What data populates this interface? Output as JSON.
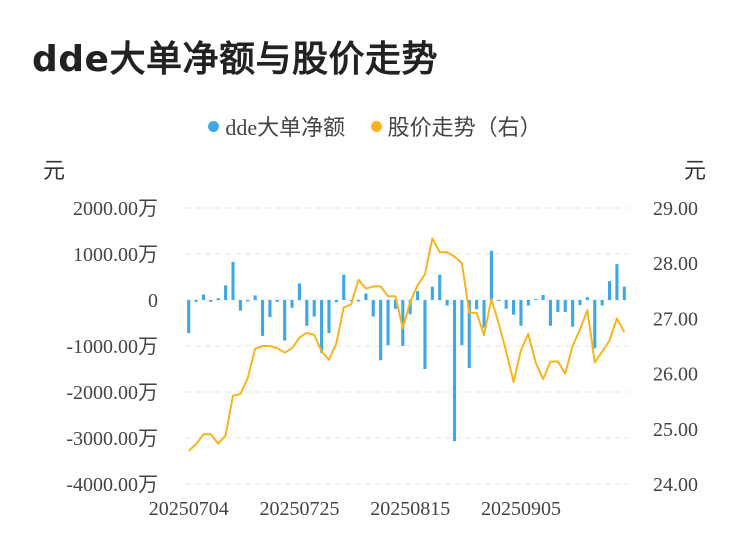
{
  "title": "dde大单净额与股价走势",
  "colors": {
    "bar": "#3fa7e6",
    "line": "#f6b51e",
    "grid": "#e6e6e6"
  },
  "chart_data": {
    "type": "bar+line",
    "title": "dde大单净额与股价走势",
    "legend": [
      "dde大单净额",
      "股价走势（右）"
    ],
    "legend_position": "top-center",
    "left_unit": "元",
    "right_unit": "元",
    "left_axis": {
      "range": [
        -4000,
        2000
      ],
      "ticks": [
        "2000.00万",
        "1000.00万",
        "0",
        "-1000.00万",
        "-2000.00万",
        "-3000.00万",
        "-4000.00万"
      ]
    },
    "right_axis": {
      "range": [
        24.0,
        29.0
      ],
      "ticks": [
        "29.00",
        "28.00",
        "27.00",
        "26.00",
        "25.00",
        "24.00"
      ]
    },
    "x_tick_labels": [
      "20250704",
      "20250725",
      "20250815",
      "20250905"
    ],
    "x_tick_index": [
      0,
      15,
      30,
      45
    ],
    "grid": true,
    "series": [
      {
        "name": "dde大单净额",
        "type": "bar",
        "values": [
          -720,
          -40,
          120,
          -40,
          40,
          320,
          830,
          -230,
          -30,
          100,
          -780,
          -370,
          -40,
          -880,
          -170,
          360,
          -560,
          -360,
          -1150,
          -720,
          -50,
          550,
          -20,
          -30,
          140,
          -360,
          -1310,
          -980,
          -190,
          -1000,
          -310,
          190,
          -1500,
          290,
          550,
          -120,
          -3070,
          -980,
          -1480,
          -200,
          -600,
          1070,
          -20,
          -190,
          -320,
          -560,
          -120,
          20,
          110,
          -560,
          -260,
          -260,
          -580,
          -110,
          60,
          -1050,
          -120,
          410,
          780,
          290
        ],
        "dates_start": "20250704"
      },
      {
        "name": "股价走势（右）",
        "type": "line",
        "values": [
          24.6,
          24.72,
          24.9,
          24.9,
          24.73,
          24.88,
          25.6,
          25.63,
          25.92,
          26.45,
          26.5,
          26.5,
          26.46,
          26.38,
          26.46,
          26.65,
          26.74,
          26.7,
          26.4,
          26.25,
          26.55,
          27.2,
          27.25,
          27.7,
          27.54,
          27.58,
          27.58,
          27.4,
          27.4,
          26.82,
          27.3,
          27.6,
          27.8,
          28.45,
          28.2,
          28.2,
          28.12,
          28.0,
          27.1,
          27.1,
          26.7,
          27.35,
          26.9,
          26.4,
          25.85,
          26.42,
          26.72,
          26.2,
          25.9,
          26.22,
          26.22,
          26.0,
          26.5,
          26.8,
          27.15,
          26.2,
          26.4,
          26.6,
          27.0,
          26.75
        ]
      }
    ]
  }
}
